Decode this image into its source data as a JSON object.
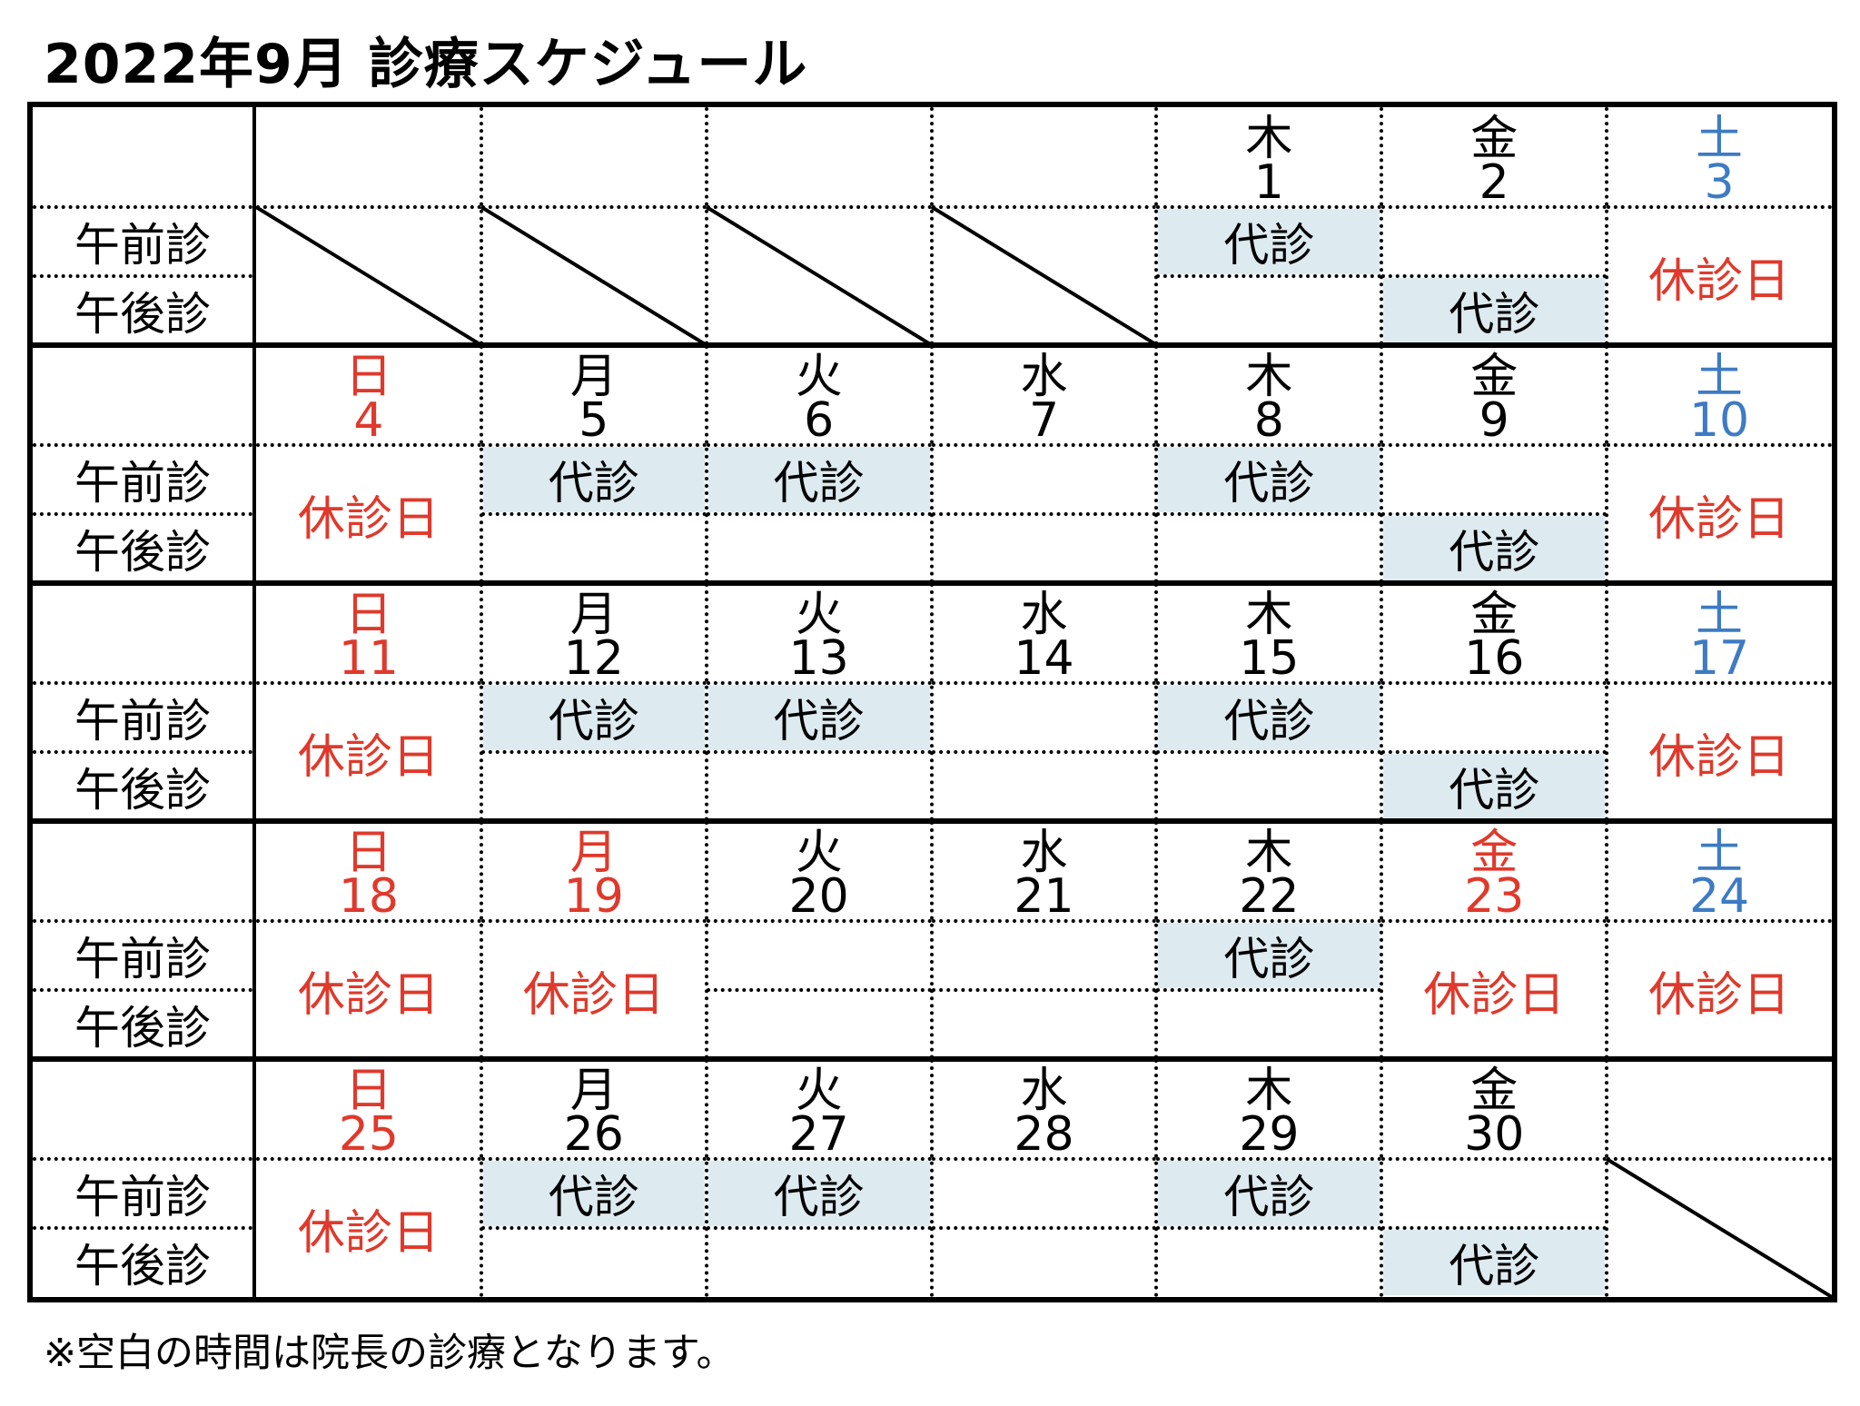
{
  "title": "2022年9月 診療スケジュール",
  "footnote": "※空白の時間は院長の診療となります。",
  "row_labels": {
    "am": "午前診",
    "pm": "午後診"
  },
  "colors": {
    "holiday_red": "#e0392b",
    "saturday_blue": "#3d7bc4",
    "shade": "#ddebf1"
  },
  "weeks": [
    {
      "days": [
        {
          "col": 0,
          "empty": true
        },
        {
          "col": 1,
          "empty": true
        },
        {
          "col": 2,
          "empty": true
        },
        {
          "col": 3,
          "empty": true
        },
        {
          "col": 4,
          "dow": "木",
          "day": "1",
          "am": "代診",
          "pm": ""
        },
        {
          "col": 5,
          "dow": "金",
          "day": "2",
          "am": "",
          "pm": "代診"
        },
        {
          "col": 6,
          "dow": "土",
          "day": "3",
          "dow_color": "blue",
          "holiday": "休診日"
        }
      ]
    },
    {
      "days": [
        {
          "col": 0,
          "dow": "日",
          "day": "4",
          "dow_color": "red",
          "holiday": "休診日"
        },
        {
          "col": 1,
          "dow": "月",
          "day": "5",
          "am": "代診",
          "pm": ""
        },
        {
          "col": 2,
          "dow": "火",
          "day": "6",
          "am": "代診",
          "pm": ""
        },
        {
          "col": 3,
          "dow": "水",
          "day": "7",
          "am": "",
          "pm": ""
        },
        {
          "col": 4,
          "dow": "木",
          "day": "8",
          "am": "代診",
          "pm": ""
        },
        {
          "col": 5,
          "dow": "金",
          "day": "9",
          "am": "",
          "pm": "代診"
        },
        {
          "col": 6,
          "dow": "土",
          "day": "10",
          "dow_color": "blue",
          "holiday": "休診日"
        }
      ]
    },
    {
      "days": [
        {
          "col": 0,
          "dow": "日",
          "day": "11",
          "dow_color": "red",
          "holiday": "休診日"
        },
        {
          "col": 1,
          "dow": "月",
          "day": "12",
          "am": "代診",
          "pm": ""
        },
        {
          "col": 2,
          "dow": "火",
          "day": "13",
          "am": "代診",
          "pm": ""
        },
        {
          "col": 3,
          "dow": "水",
          "day": "14",
          "am": "",
          "pm": ""
        },
        {
          "col": 4,
          "dow": "木",
          "day": "15",
          "am": "代診",
          "pm": ""
        },
        {
          "col": 5,
          "dow": "金",
          "day": "16",
          "am": "",
          "pm": "代診"
        },
        {
          "col": 6,
          "dow": "土",
          "day": "17",
          "dow_color": "blue",
          "holiday": "休診日"
        }
      ]
    },
    {
      "days": [
        {
          "col": 0,
          "dow": "日",
          "day": "18",
          "dow_color": "red",
          "holiday": "休診日"
        },
        {
          "col": 1,
          "dow": "月",
          "day": "19",
          "dow_color": "red",
          "holiday": "休診日"
        },
        {
          "col": 2,
          "dow": "火",
          "day": "20",
          "am": "",
          "pm": ""
        },
        {
          "col": 3,
          "dow": "水",
          "day": "21",
          "am": "",
          "pm": ""
        },
        {
          "col": 4,
          "dow": "木",
          "day": "22",
          "am": "代診",
          "pm": ""
        },
        {
          "col": 5,
          "dow": "金",
          "day": "23",
          "dow_color": "red",
          "holiday": "休診日"
        },
        {
          "col": 6,
          "dow": "土",
          "day": "24",
          "dow_color": "blue",
          "holiday": "休診日"
        }
      ]
    },
    {
      "days": [
        {
          "col": 0,
          "dow": "日",
          "day": "25",
          "dow_color": "red",
          "holiday": "休診日"
        },
        {
          "col": 1,
          "dow": "月",
          "day": "26",
          "am": "代診",
          "pm": ""
        },
        {
          "col": 2,
          "dow": "火",
          "day": "27",
          "am": "代診",
          "pm": ""
        },
        {
          "col": 3,
          "dow": "水",
          "day": "28",
          "am": "",
          "pm": ""
        },
        {
          "col": 4,
          "dow": "木",
          "day": "29",
          "am": "代診",
          "pm": ""
        },
        {
          "col": 5,
          "dow": "金",
          "day": "30",
          "am": "",
          "pm": "代診"
        },
        {
          "col": 6,
          "empty": true
        }
      ]
    }
  ]
}
